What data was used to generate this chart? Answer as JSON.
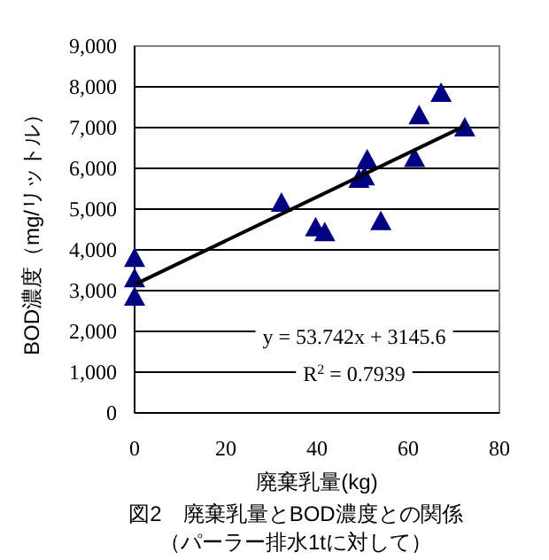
{
  "chart_data": {
    "type": "scatter",
    "title": "図2　廃棄乳量とBOD濃度との関係",
    "subtitle": "（パーラー排水1tに対して）",
    "xlabel": "廃棄乳量(kg)",
    "ylabel": "BOD濃度（mg/リットル）",
    "xlim": [
      0,
      80
    ],
    "xticks": [
      0,
      20,
      40,
      60,
      80
    ],
    "ylim": [
      0,
      9000
    ],
    "yticks": [
      {
        "value": 0,
        "label": "0"
      },
      {
        "value": 1000,
        "label": "1,000"
      },
      {
        "value": 2000,
        "label": "2,000"
      },
      {
        "value": 3000,
        "label": "3,000"
      },
      {
        "value": 4000,
        "label": "4,000"
      },
      {
        "value": 5000,
        "label": "5,000"
      },
      {
        "value": 6000,
        "label": "6,000"
      },
      {
        "value": 7000,
        "label": "7,000"
      },
      {
        "value": 8000,
        "label": "8,000"
      },
      {
        "value": 9000,
        "label": "9,000"
      }
    ],
    "grid": "y",
    "series": [
      {
        "marker": "triangle",
        "color": "#000080",
        "x": [
          0,
          0,
          0,
          32.2,
          39.7,
          41.7,
          49.2,
          51,
          50.4,
          54,
          61.4,
          62.4,
          67.2,
          72.4
        ],
        "values": [
          3800,
          3300,
          2850,
          5150,
          4550,
          4430,
          5740,
          6220,
          5800,
          4700,
          6250,
          7300,
          7850,
          7000
        ]
      },
      {
        "type": "line",
        "color": "#000000",
        "x": [
          0,
          72.4
        ],
        "values": [
          3150,
          7040
        ]
      }
    ],
    "annotations": [
      "y = 53.742x + 3145.6",
      "R$^{2}$ = 0.7939"
    ]
  }
}
